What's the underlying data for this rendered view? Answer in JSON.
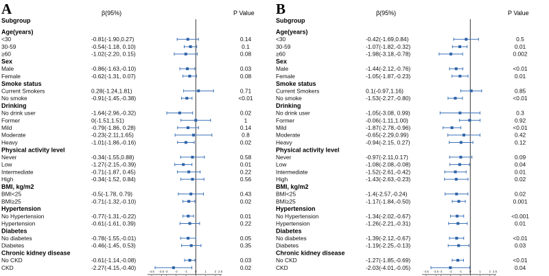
{
  "chart_data": [
    {
      "type": "forest",
      "panel_label": "A",
      "headers": {
        "subgroup": "Subgroup",
        "beta": "β(95%)",
        "p": "P Value"
      },
      "xlim": [
        -4.5,
        2.5
      ],
      "reference_line": 0,
      "x_ticks": [
        "-4.5",
        "-3.5",
        "-3",
        "-2",
        "-1",
        "0",
        "1",
        "2",
        "2.5"
      ],
      "x_tick_values": [
        -4.5,
        -3.5,
        -3,
        -2,
        -1,
        0,
        1,
        2,
        2.5
      ],
      "rows": [
        {
          "kind": "group",
          "label": "Age(years)"
        },
        {
          "kind": "item",
          "label": "<30",
          "ci_text": "-0.81(-1.90,0.27)",
          "beta": -0.81,
          "lo": -1.9,
          "hi": 0.27,
          "p": "0.14"
        },
        {
          "kind": "item",
          "label": "30-59",
          "ci_text": "-0.54(-1.18, 0.10)",
          "beta": -0.54,
          "lo": -1.18,
          "hi": 0.1,
          "p": "0.1"
        },
        {
          "kind": "item",
          "label": "≥60",
          "ci_text": "-1.02(-2.20, 0.15)",
          "beta": -1.02,
          "lo": -2.2,
          "hi": 0.15,
          "p": "0.08"
        },
        {
          "kind": "group",
          "label": "Sex"
        },
        {
          "kind": "item",
          "label": "Male",
          "ci_text": "-0.86(-1.63,-0.10)",
          "beta": -0.86,
          "lo": -1.63,
          "hi": -0.1,
          "p": "0.03"
        },
        {
          "kind": "item",
          "label": "Female",
          "ci_text": "-0.62(-1.31, 0.07)",
          "beta": -0.62,
          "lo": -1.31,
          "hi": 0.07,
          "p": "0.08"
        },
        {
          "kind": "group",
          "label": "Smoke status"
        },
        {
          "kind": "item",
          "label": "Current Smokers",
          "ci_text": "0.28(-1.24,1.81)",
          "beta": 0.28,
          "lo": -1.24,
          "hi": 1.81,
          "p": "0.71"
        },
        {
          "kind": "item",
          "label": "No smoke",
          "ci_text": "-0.91(-1.45,-0.38)",
          "beta": -0.91,
          "lo": -1.45,
          "hi": -0.38,
          "p": "<0.01"
        },
        {
          "kind": "group",
          "label": "Drinking"
        },
        {
          "kind": "item",
          "label": "No drink user",
          "ci_text": "-1.64(-2.96,-0.32)",
          "beta": -1.64,
          "lo": -2.96,
          "hi": -0.32,
          "p": "0.02"
        },
        {
          "kind": "item",
          "label": "Former",
          "ci_text": "0(-1.51,1.51)",
          "beta": 0,
          "lo": -1.51,
          "hi": 1.51,
          "p": "1"
        },
        {
          "kind": "item",
          "label": "Mild",
          "ci_text": "-0.79(-1.86, 0.28)",
          "beta": -0.79,
          "lo": -1.86,
          "hi": 0.28,
          "p": "0.14"
        },
        {
          "kind": "item",
          "label": "Moderate",
          "ci_text": "-0.23(-2.11,1.65)",
          "beta": -0.23,
          "lo": -2.11,
          "hi": 1.65,
          "p": "0.8"
        },
        {
          "kind": "item",
          "label": "Heavy",
          "ci_text": "-1.01(-1.86,-0.16)",
          "beta": -1.01,
          "lo": -1.86,
          "hi": -0.16,
          "p": "0.02"
        },
        {
          "kind": "group",
          "label": "Physical activity level"
        },
        {
          "kind": "item",
          "label": "Never",
          "ci_text": "-0.34(-1.55,0.88)",
          "beta": -0.34,
          "lo": -1.55,
          "hi": 0.88,
          "p": "0.58"
        },
        {
          "kind": "item",
          "label": "Low",
          "ci_text": "-1.27(-2.15,-0.39)",
          "beta": -1.27,
          "lo": -2.15,
          "hi": -0.39,
          "p": "0.01"
        },
        {
          "kind": "item",
          "label": "Intermediate",
          "ci_text": "-0.71(-1.87, 0.45)",
          "beta": -0.71,
          "lo": -1.87,
          "hi": 0.45,
          "p": "0.22"
        },
        {
          "kind": "item",
          "label": "High",
          "ci_text": "-0.34(-1.52, 0.84)",
          "beta": -0.34,
          "lo": -1.52,
          "hi": 0.84,
          "p": "0.56"
        },
        {
          "kind": "group",
          "label": "BMI, kg/m2"
        },
        {
          "kind": "item",
          "label": "BMI<25",
          "ci_text": "-0.5(-1.78, 0.79)",
          "beta": -0.5,
          "lo": -1.78,
          "hi": 0.79,
          "p": "0.43"
        },
        {
          "kind": "item",
          "label": "BMI≥25",
          "ci_text": "-0.71(-1.32,-0.10)",
          "beta": -0.71,
          "lo": -1.32,
          "hi": -0.1,
          "p": "0.02"
        },
        {
          "kind": "group",
          "label": "Hypertension"
        },
        {
          "kind": "item",
          "label": "No Hypertension",
          "ci_text": "-0.77(-1.31,-0.22)",
          "beta": -0.77,
          "lo": -1.31,
          "hi": -0.22,
          "p": "0.01"
        },
        {
          "kind": "item",
          "label": "Hypertension",
          "ci_text": "-0.61(-1.61, 0.39)",
          "beta": -0.61,
          "lo": -1.61,
          "hi": 0.39,
          "p": "0.22"
        },
        {
          "kind": "group",
          "label": "Diabetes"
        },
        {
          "kind": "item",
          "label": "No diabetes",
          "ci_text": "-0.78(-1.55,-0.01)",
          "beta": -0.78,
          "lo": -1.55,
          "hi": -0.01,
          "p": "0.05"
        },
        {
          "kind": "item",
          "label": "Diabetes",
          "ci_text": "-0.46(-1.45, 0.53)",
          "beta": -0.46,
          "lo": -1.45,
          "hi": 0.53,
          "p": "0.35"
        },
        {
          "kind": "group",
          "label": "Chronic kidney disease"
        },
        {
          "kind": "item",
          "label": "No CKD",
          "ci_text": "-0.61(-1.14,-0.08)",
          "beta": -0.61,
          "lo": -1.14,
          "hi": -0.08,
          "p": "0.03"
        },
        {
          "kind": "item",
          "label": "CKD",
          "ci_text": "-2.27(-4.15,-0.40)",
          "beta": -2.27,
          "lo": -4.15,
          "hi": -0.4,
          "p": "0.02"
        }
      ]
    },
    {
      "type": "forest",
      "panel_label": "B",
      "headers": {
        "subgroup": "Subgroup",
        "beta": "β(95%)",
        "p": "P Value"
      },
      "xlim": [
        -4.5,
        2.5
      ],
      "reference_line": 0,
      "x_ticks": [
        "-4.5",
        "-3.5",
        "-3",
        "-2",
        "-1",
        "0",
        "1",
        "2",
        "2.5"
      ],
      "x_tick_values": [
        -4.5,
        -3.5,
        -3,
        -2,
        -1,
        0,
        1,
        2,
        2.5
      ],
      "rows": [
        {
          "kind": "group",
          "label": "Age(years)"
        },
        {
          "kind": "item",
          "label": "<30",
          "ci_text": "-0.42(-1.69,0.84)",
          "beta": -0.42,
          "lo": -1.69,
          "hi": 0.84,
          "p": "0.5"
        },
        {
          "kind": "item",
          "label": "30-59",
          "ci_text": "-1.07(-1.82,-0.32)",
          "beta": -1.07,
          "lo": -1.82,
          "hi": -0.32,
          "p": "0.01"
        },
        {
          "kind": "item",
          "label": "≥60",
          "ci_text": "-1.98(-3.18,-0.78)",
          "beta": -1.98,
          "lo": -3.18,
          "hi": -0.78,
          "p": "0.002"
        },
        {
          "kind": "group",
          "label": "Sex"
        },
        {
          "kind": "item",
          "label": "Male",
          "ci_text": "-1.44(-2.12,-0.76)",
          "beta": -1.44,
          "lo": -2.12,
          "hi": -0.76,
          "p": "<0.01"
        },
        {
          "kind": "item",
          "label": "Female",
          "ci_text": "-1.05(-1.87,-0.23)",
          "beta": -1.05,
          "lo": -1.87,
          "hi": -0.23,
          "p": "0.01"
        },
        {
          "kind": "group",
          "label": "Smoke status"
        },
        {
          "kind": "item",
          "label": "Current Smokers",
          "ci_text": "0.1(-0.97,1.16)",
          "beta": 0.1,
          "lo": -0.97,
          "hi": 1.16,
          "p": "0.85"
        },
        {
          "kind": "item",
          "label": "No smoke",
          "ci_text": "-1.53(-2.27,-0.80)",
          "beta": -1.53,
          "lo": -2.27,
          "hi": -0.8,
          "p": "<0.01"
        },
        {
          "kind": "group",
          "label": "Drinking"
        },
        {
          "kind": "item",
          "label": "No drink user",
          "ci_text": "-1.05(-3.08, 0.99)",
          "beta": -1.05,
          "lo": -3.08,
          "hi": 0.99,
          "p": "0.3"
        },
        {
          "kind": "item",
          "label": "Former",
          "ci_text": "-0.06(-1.11,1.00)",
          "beta": -0.06,
          "lo": -1.11,
          "hi": 1.0,
          "p": "0.92"
        },
        {
          "kind": "item",
          "label": "Mild",
          "ci_text": "-1.87(-2.78,-0.96)",
          "beta": -1.87,
          "lo": -2.78,
          "hi": -0.96,
          "p": "<0.01"
        },
        {
          "kind": "item",
          "label": "Moderate",
          "ci_text": "-0.65(-2.29,0.99)",
          "beta": -0.65,
          "lo": -2.29,
          "hi": 0.99,
          "p": "0.42"
        },
        {
          "kind": "item",
          "label": "Heavy",
          "ci_text": "-0.94(-2.15, 0.27)",
          "beta": -0.94,
          "lo": -2.15,
          "hi": 0.27,
          "p": "0.12"
        },
        {
          "kind": "group",
          "label": "Physical activity level"
        },
        {
          "kind": "item",
          "label": "Never",
          "ci_text": "-0.97(-2.11,0.17)",
          "beta": -0.97,
          "lo": -2.11,
          "hi": 0.17,
          "p": "0.09"
        },
        {
          "kind": "item",
          "label": "Low",
          "ci_text": "-1.08(-2.08,-0.08)",
          "beta": -1.08,
          "lo": -2.08,
          "hi": -0.08,
          "p": "0.04"
        },
        {
          "kind": "item",
          "label": "Intermediate",
          "ci_text": "-1.52(-2.61,-0.42)",
          "beta": -1.52,
          "lo": -2.61,
          "hi": -0.42,
          "p": "0.01"
        },
        {
          "kind": "item",
          "label": "High",
          "ci_text": "-1.43(-2.63,-0.23)",
          "beta": -1.43,
          "lo": -2.63,
          "hi": -0.23,
          "p": "0.02"
        },
        {
          "kind": "group",
          "label": "BMI, kg/m2"
        },
        {
          "kind": "item",
          "label": "BMI<25",
          "ci_text": "-1.4(-2.57,-0.24)",
          "beta": -1.4,
          "lo": -2.57,
          "hi": -0.24,
          "p": "0.02"
        },
        {
          "kind": "item",
          "label": "BMI≥25",
          "ci_text": "-1.17(-1.84,-0.50)",
          "beta": -1.17,
          "lo": -1.84,
          "hi": -0.5,
          "p": "0.001"
        },
        {
          "kind": "group",
          "label": "Hypertension"
        },
        {
          "kind": "item",
          "label": "No Hypertension",
          "ci_text": "-1.34(-2.02,-0.67)",
          "beta": -1.34,
          "lo": -2.02,
          "hi": -0.67,
          "p": "<0.001"
        },
        {
          "kind": "item",
          "label": "Hypertension",
          "ci_text": "-1.26(-2.21,-0.31)",
          "beta": -1.26,
          "lo": -2.21,
          "hi": -0.31,
          "p": "0.01"
        },
        {
          "kind": "group",
          "label": "Diabetes"
        },
        {
          "kind": "item",
          "label": "No diabetes",
          "ci_text": "-1.39(-2.12,-0.67)",
          "beta": -1.39,
          "lo": -2.12,
          "hi": -0.67,
          "p": "<0.01"
        },
        {
          "kind": "item",
          "label": "Diabetes",
          "ci_text": "-1.19(-2.25,-0.13)",
          "beta": -1.19,
          "lo": -2.25,
          "hi": -0.13,
          "p": "0.03"
        },
        {
          "kind": "group",
          "label": "Chronic kidney disease"
        },
        {
          "kind": "item",
          "label": "No CKD",
          "ci_text": "-1.27(-1.85,-0.69)",
          "beta": -1.27,
          "lo": -1.85,
          "hi": -0.69,
          "p": "<0.01"
        },
        {
          "kind": "item",
          "label": "CKD",
          "ci_text": "-2.03(-4.01,-0.05)",
          "beta": -2.03,
          "lo": -4.01,
          "hi": -0.05,
          "p": "0.04"
        }
      ]
    }
  ],
  "colors": {
    "marker": "#2e63a8",
    "ci_line": "#3a70b8",
    "axis": "#222222",
    "text": "#111111"
  }
}
